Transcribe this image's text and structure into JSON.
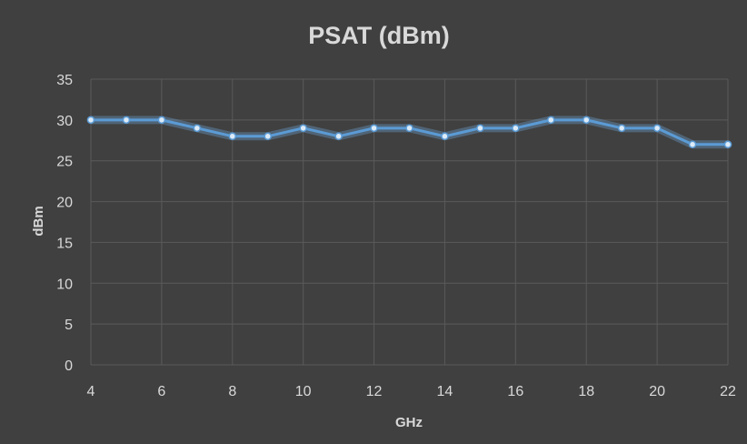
{
  "chart_data": {
    "type": "line",
    "title": "PSAT (dBm)",
    "xlabel": "GHz",
    "ylabel": "dBm",
    "xlim": [
      4,
      22
    ],
    "ylim": [
      0,
      35
    ],
    "x_ticks": [
      4,
      6,
      8,
      10,
      12,
      14,
      16,
      18,
      20,
      22
    ],
    "y_ticks": [
      0,
      5,
      10,
      15,
      20,
      25,
      30,
      35
    ],
    "grid": true,
    "legend": "none",
    "series": [
      {
        "color": "#5B9BD5",
        "x": [
          4,
          5,
          6,
          7,
          8,
          9,
          10,
          11,
          12,
          13,
          14,
          15,
          16,
          17,
          18,
          19,
          20,
          21,
          22
        ],
        "y": [
          30,
          30,
          30,
          29,
          28,
          28,
          29,
          28,
          29,
          29,
          28,
          29,
          29,
          30,
          30,
          29,
          29,
          27,
          27
        ]
      }
    ]
  }
}
